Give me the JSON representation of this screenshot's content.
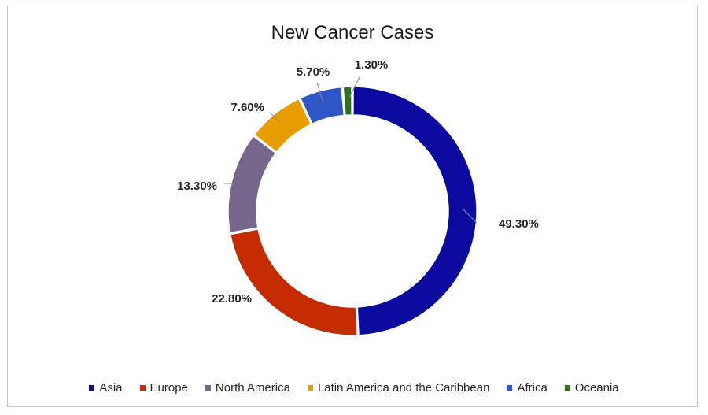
{
  "chart_data": {
    "type": "pie",
    "variant": "donut",
    "title": "New Cancer Cases",
    "categories": [
      "Asia",
      "Europe",
      "North America",
      "Latin America and the Caribbean",
      "Africa",
      "Oceania"
    ],
    "values": [
      49.3,
      22.8,
      13.3,
      7.6,
      5.7,
      1.3
    ],
    "value_labels": [
      "49.30%",
      "22.80%",
      "13.30%",
      "7.60%",
      "5.70%",
      "1.30%"
    ],
    "unit": "%",
    "colors": [
      "#0a0a9e",
      "#c52b00",
      "#76658d",
      "#e79c00",
      "#2f56c7",
      "#2e6f1f"
    ],
    "legend_position": "bottom"
  }
}
